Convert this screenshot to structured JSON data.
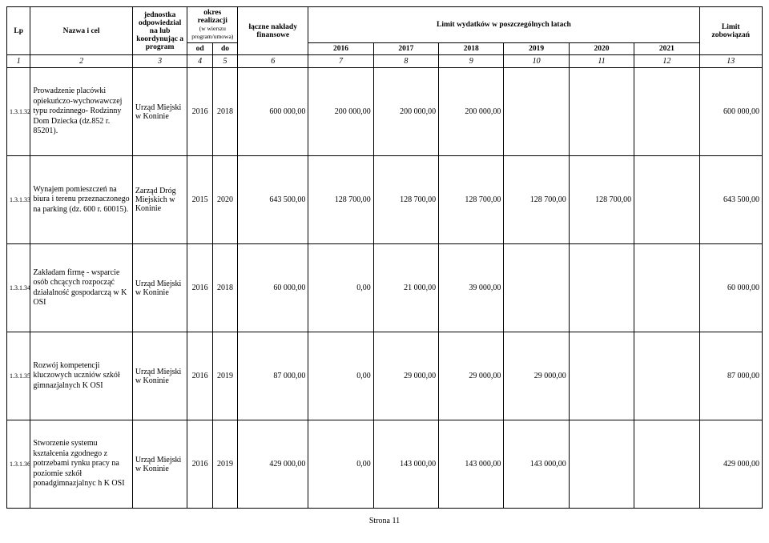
{
  "header": {
    "lp": "Lp",
    "nazwa": "Nazwa i cel",
    "jednostka": "jednostka odpowiedzial na lub koordynując a program",
    "okres": "okres realizacji",
    "okres_sub": "(w wierszu program/umowa)",
    "od": "od",
    "do": "do",
    "laczne": "łączne nakłady finansowe",
    "limit_lat": "Limit wydatków w poszczególnych latach",
    "limit_zob": "Limit zobowiązań",
    "y2016": "2016",
    "y2017": "2017",
    "y2018": "2018",
    "y2019": "2019",
    "y2020": "2020",
    "y2021": "2021"
  },
  "colnums": {
    "c1": "1",
    "c2": "2",
    "c3": "3",
    "c4": "4",
    "c5": "5",
    "c6": "6",
    "c7": "7",
    "c8": "8",
    "c9": "9",
    "c10": "10",
    "c11": "11",
    "c12": "12",
    "c13": "13"
  },
  "rows": [
    {
      "lp": "1.3.1.32",
      "nazwa": "Prowadzenie placówki opiekuńczo-wychowawczej typu rodzinnego- Rodzinny Dom Dziecka (dz.852 r. 85201).",
      "jedn": "Urząd Miejski w Koninie",
      "od": "2016",
      "do": "2018",
      "laczne": "600 000,00",
      "v2016": "200 000,00",
      "v2017": "200 000,00",
      "v2018": "200 000,00",
      "v2019": "",
      "v2020": "",
      "v2021": "",
      "limit": "600 000,00"
    },
    {
      "lp": "1.3.1.33",
      "nazwa": "Wynajem pomieszczeń na biura i terenu przeznaczonego na parking (dz. 600 r. 60015).",
      "jedn": "Zarząd Dróg Miejskich w Koninie",
      "od": "2015",
      "do": "2020",
      "laczne": "643 500,00",
      "v2016": "128 700,00",
      "v2017": "128 700,00",
      "v2018": "128 700,00",
      "v2019": "128 700,00",
      "v2020": "128 700,00",
      "v2021": "",
      "limit": "643 500,00"
    },
    {
      "lp": "1.3.1.34",
      "nazwa": "Zakładam firmę - wsparcie osób chcących rozpocząć działalność gospodarczą w K OSI",
      "jedn": "Urząd Miejski w Koninie",
      "od": "2016",
      "do": "2018",
      "laczne": "60 000,00",
      "v2016": "0,00",
      "v2017": "21 000,00",
      "v2018": "39 000,00",
      "v2019": "",
      "v2020": "",
      "v2021": "",
      "limit": "60 000,00"
    },
    {
      "lp": "1.3.1.35",
      "nazwa": "Rozwój kompetencji kluczowych uczniów szkół gimnazjalnych K OSI",
      "jedn": "Urząd Miejski w Koninie",
      "od": "2016",
      "do": "2019",
      "laczne": "87 000,00",
      "v2016": "0,00",
      "v2017": "29 000,00",
      "v2018": "29 000,00",
      "v2019": "29 000,00",
      "v2020": "",
      "v2021": "",
      "limit": "87 000,00"
    },
    {
      "lp": "1.3.1.36",
      "nazwa": "Stworzenie systemu kształcenia zgodnego z potrzebami rynku pracy na poziomie szkół ponadgimnazjalnyc h K OSI",
      "jedn": "Urząd Miejski w Koninie",
      "od": "2016",
      "do": "2019",
      "laczne": "429 000,00",
      "v2016": "0,00",
      "v2017": "143 000,00",
      "v2018": "143 000,00",
      "v2019": "143 000,00",
      "v2020": "",
      "v2021": "",
      "limit": "429 000,00"
    }
  ],
  "footer": "Strona 11"
}
